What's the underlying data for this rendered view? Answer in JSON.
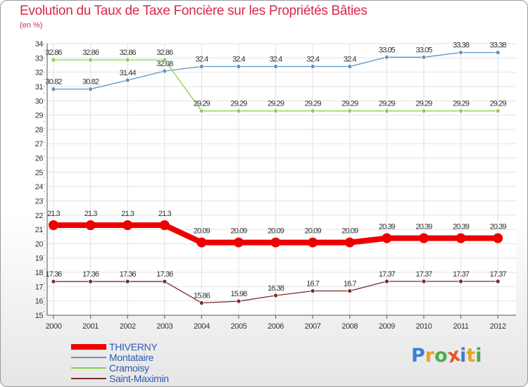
{
  "header": {
    "title": "Evolution du Taux de Taxe Foncière sur les Propriétés Bâties",
    "unit": "(en %)"
  },
  "logo": {
    "text": "Proxiti",
    "letters": [
      "P",
      "r",
      "o",
      "x",
      "i",
      "t",
      "i"
    ],
    "colors": [
      "#3b7fd4",
      "#f0a020",
      "#49b049",
      "#e8542a",
      "#3b7fd4",
      "#f0a020",
      "#49b049"
    ]
  },
  "chart_data": {
    "type": "line",
    "title": "Evolution du Taux de Taxe Foncière sur les Propriétés Bâties",
    "ylabel": "(en %)",
    "xlabel": "",
    "x": [
      "2000",
      "2001",
      "2002",
      "2003",
      "2004",
      "2005",
      "2006",
      "2007",
      "2008",
      "2009",
      "2010",
      "2011",
      "2012"
    ],
    "ylim": [
      15,
      34
    ],
    "yticks": [
      "15",
      "16",
      "17",
      "18",
      "19",
      "20",
      "21",
      "22",
      "23",
      "24",
      "25",
      "26",
      "27",
      "28",
      "29",
      "30",
      "31",
      "32",
      "33",
      "34"
    ],
    "grid": true,
    "legend_position": "bottom-left",
    "series": [
      {
        "name": "THIVERNY",
        "color": "#ee0000",
        "thick": true,
        "values": [
          21.3,
          21.3,
          21.3,
          21.3,
          20.09,
          20.09,
          20.09,
          20.09,
          20.09,
          20.39,
          20.39,
          20.39,
          20.39
        ],
        "labels": [
          "21.3",
          "21.3",
          "21.3",
          "21.3",
          "20.09",
          "20.09",
          "20.09",
          "20.09",
          "20.09",
          "20.39",
          "20.39",
          "20.39",
          "20.39"
        ]
      },
      {
        "name": "Montataire",
        "color": "#5b95c8",
        "thick": false,
        "values": [
          30.82,
          30.82,
          31.44,
          32.08,
          32.4,
          32.4,
          32.4,
          32.4,
          32.4,
          33.05,
          33.05,
          33.38,
          33.38
        ],
        "labels": [
          "30.82",
          "30.82",
          "31.44",
          "32.08",
          "32.4",
          "32.4",
          "32.4",
          "32.4",
          "32.4",
          "33.05",
          "33.05",
          "33.38",
          "33.38"
        ]
      },
      {
        "name": "Cramoisy",
        "color": "#8fd04a",
        "thick": false,
        "values": [
          32.86,
          32.86,
          32.86,
          32.86,
          29.29,
          29.29,
          29.29,
          29.29,
          29.29,
          29.29,
          29.29,
          29.29,
          29.29
        ],
        "labels": [
          "32.86",
          "32.86",
          "32.86",
          "32.86",
          "29.29",
          "29.29",
          "29.29",
          "29.29",
          "29.29",
          "29.29",
          "29.29",
          "29.29",
          "29.29"
        ]
      },
      {
        "name": "Saint-Maximin",
        "color": "#7b2c2c",
        "thick": false,
        "values": [
          17.36,
          17.36,
          17.36,
          17.36,
          15.86,
          15.98,
          16.38,
          16.7,
          16.7,
          17.37,
          17.37,
          17.37,
          17.37
        ],
        "labels": [
          "17.36",
          "17.36",
          "17.36",
          "17.36",
          "15.86",
          "15.98",
          "16.38",
          "16.7",
          "16.7",
          "17.37",
          "17.37",
          "17.37",
          "17.37"
        ]
      }
    ]
  }
}
